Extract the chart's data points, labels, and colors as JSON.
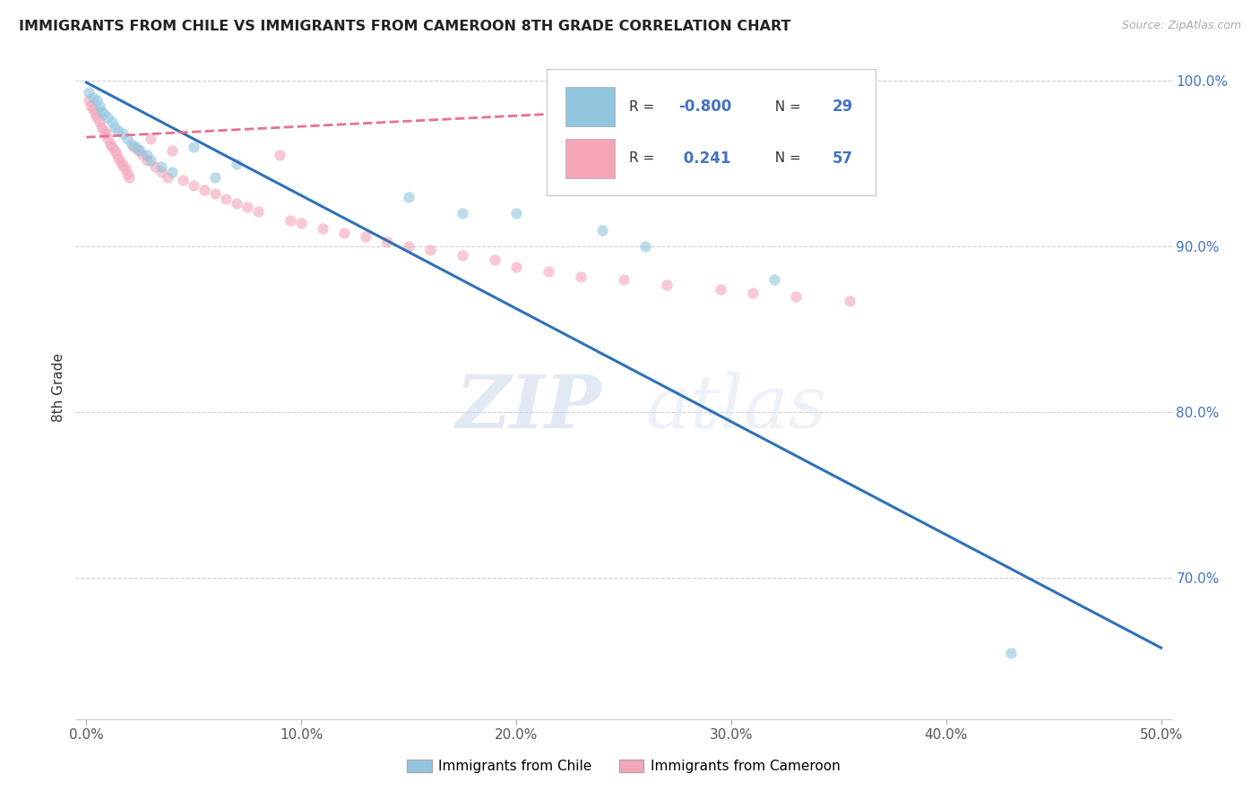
{
  "title": "IMMIGRANTS FROM CHILE VS IMMIGRANTS FROM CAMEROON 8TH GRADE CORRELATION CHART",
  "source": "Source: ZipAtlas.com",
  "ylabel": "8th Grade",
  "legend_label_1": "Immigrants from Chile",
  "legend_label_2": "Immigrants from Cameroon",
  "R1": -0.8,
  "N1": 29,
  "R2": 0.241,
  "N2": 57,
  "color_chile": "#92c5de",
  "color_cameroon": "#f4a6b8",
  "color_chile_line": "#3070b8",
  "color_cameroon_line": "#e87090",
  "xlim": [
    -0.005,
    0.505
  ],
  "ylim": [
    0.615,
    1.015
  ],
  "xticks": [
    0.0,
    0.1,
    0.2,
    0.3,
    0.4,
    0.5
  ],
  "yticks": [
    0.7,
    0.8,
    0.9,
    1.0
  ],
  "ytick_labels_right": [
    "70.0%",
    "80.0%",
    "90.0%",
    "100.0%"
  ],
  "xtick_labels": [
    "0.0%",
    "10.0%",
    "20.0%",
    "30.0%",
    "40.0%",
    "50.0%"
  ],
  "watermark_zip": "ZIP",
  "watermark_atlas": "atlas",
  "background_color": "#ffffff",
  "grid_color": "#d0d0d0",
  "chile_x": [
    0.001,
    0.003,
    0.005,
    0.006,
    0.007,
    0.008,
    0.01,
    0.012,
    0.013,
    0.015,
    0.017,
    0.019,
    0.021,
    0.023,
    0.025,
    0.028,
    0.03,
    0.035,
    0.04,
    0.05,
    0.06,
    0.07,
    0.15,
    0.175,
    0.2,
    0.24,
    0.26,
    0.32,
    0.43
  ],
  "chile_y": [
    0.993,
    0.99,
    0.988,
    0.985,
    0.982,
    0.98,
    0.978,
    0.975,
    0.972,
    0.97,
    0.968,
    0.965,
    0.962,
    0.96,
    0.958,
    0.955,
    0.952,
    0.948,
    0.945,
    0.96,
    0.942,
    0.95,
    0.93,
    0.92,
    0.92,
    0.91,
    0.9,
    0.88,
    0.655
  ],
  "cameroon_x": [
    0.001,
    0.002,
    0.003,
    0.004,
    0.005,
    0.006,
    0.007,
    0.008,
    0.009,
    0.01,
    0.011,
    0.012,
    0.013,
    0.014,
    0.015,
    0.016,
    0.017,
    0.018,
    0.019,
    0.02,
    0.022,
    0.024,
    0.026,
    0.028,
    0.03,
    0.032,
    0.035,
    0.038,
    0.04,
    0.045,
    0.05,
    0.055,
    0.06,
    0.065,
    0.07,
    0.075,
    0.08,
    0.09,
    0.095,
    0.1,
    0.11,
    0.12,
    0.13,
    0.14,
    0.15,
    0.16,
    0.175,
    0.19,
    0.2,
    0.215,
    0.23,
    0.25,
    0.27,
    0.295,
    0.31,
    0.33,
    0.355
  ],
  "cameroon_y": [
    0.988,
    0.985,
    0.983,
    0.98,
    0.978,
    0.975,
    0.972,
    0.97,
    0.968,
    0.965,
    0.962,
    0.96,
    0.958,
    0.956,
    0.953,
    0.951,
    0.949,
    0.947,
    0.944,
    0.942,
    0.96,
    0.958,
    0.955,
    0.952,
    0.965,
    0.948,
    0.945,
    0.942,
    0.958,
    0.94,
    0.937,
    0.934,
    0.932,
    0.929,
    0.926,
    0.924,
    0.921,
    0.955,
    0.916,
    0.914,
    0.911,
    0.908,
    0.906,
    0.903,
    0.9,
    0.898,
    0.895,
    0.892,
    0.888,
    0.885,
    0.882,
    0.88,
    0.877,
    0.874,
    0.872,
    0.87,
    0.867
  ],
  "chile_line_x": [
    0.0,
    0.5
  ],
  "chile_line_y": [
    0.999,
    0.658
  ],
  "cameroon_line_x": [
    0.0,
    0.34
  ],
  "cameroon_line_y": [
    0.966,
    0.988
  ]
}
